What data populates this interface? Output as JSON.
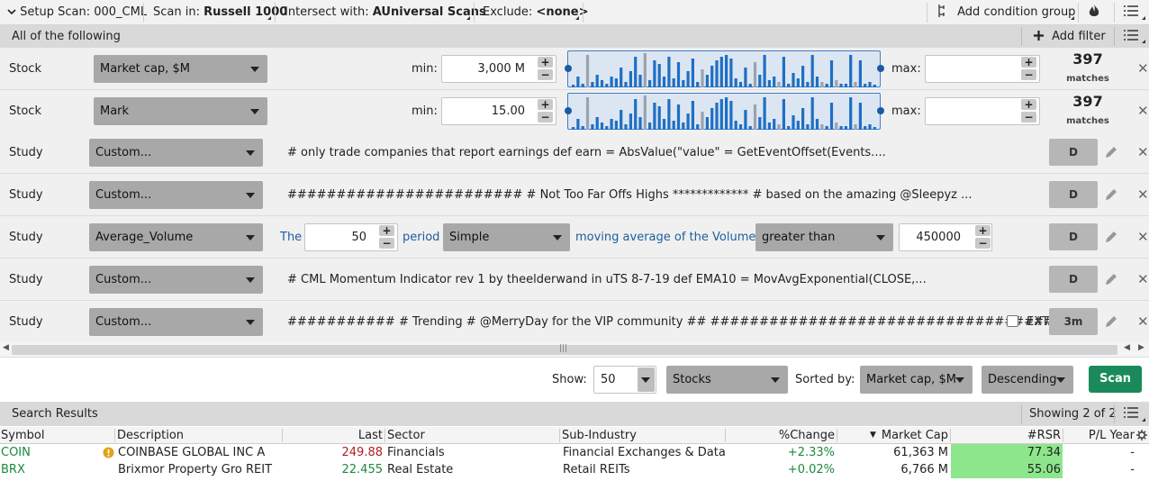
{
  "topbar": {
    "setup_scan": "Setup Scan: 000_CML",
    "scan_in_label": "Scan in:",
    "scan_in_value": "Russell 1000",
    "intersect_label": "Intersect with:",
    "intersect_value": "AUniversal Scans",
    "exclude_label": "Exclude:",
    "exclude_value": "<none>",
    "add_condition_group": "Add condition group"
  },
  "filters_header": {
    "title": "All of the following",
    "add_filter": "Add filter"
  },
  "filters": [
    {
      "type": "Stock",
      "field": "Market cap, $M",
      "min_label": "min:",
      "min": "3,000 M",
      "max_label": "max:",
      "max": "",
      "matches": "397",
      "matches_label": "matches"
    },
    {
      "type": "Stock",
      "field": "Mark",
      "min_label": "min:",
      "min": "15.00",
      "max_label": "max:",
      "max": "",
      "matches": "397",
      "matches_label": "matches"
    },
    {
      "type": "Study",
      "field": "Custom...",
      "code": "# only trade companies that report earnings  def earn = AbsValue(\"value\" = GetEventOffset(Events....",
      "agg": "D"
    },
    {
      "type": "Study",
      "field": "Custom...",
      "code": "######################## # Not Too Far Offs Highs  ************* # based on the amazing @Sleepyz ...",
      "agg": "D"
    },
    {
      "type": "Study",
      "field": "Average_Volume",
      "the": "The",
      "period_value": "50",
      "period": "period",
      "avg_type": "Simple",
      "mid_text": "moving average of the Volume is",
      "comparison": "greater than",
      "threshold": "450000",
      "agg": "D"
    },
    {
      "type": "Study",
      "field": "Custom...",
      "code": "# CML Momentum Indicator rev 1 by theelderwand in uTS 8-7-19 def EMA10 = MovAvgExponential(CLOSE,...",
      "agg": "D"
    },
    {
      "type": "Study",
      "field": "Custom...",
      "code": "########### # Trending # @MerryDay for the VIP community ## #####################################...",
      "ext": "EXT",
      "agg": "3m"
    }
  ],
  "controls": {
    "show_label": "Show:",
    "show_value": "50",
    "universe": "Stocks",
    "sorted_label": "Sorted by:",
    "sorted_value": "Market cap, $M",
    "order": "Descending",
    "scan": "Scan"
  },
  "results": {
    "title": "Search Results",
    "showing": "Showing 2 of 2",
    "columns": [
      "Symbol",
      "Description",
      "Last",
      "Sector",
      "Sub-Industry",
      "%Change",
      "Market Cap",
      "#RSR",
      "P/L Year"
    ],
    "rows": [
      {
        "symbol": "COIN",
        "description": "COINBASE GLOBAL INC A",
        "last": "249.88",
        "sector": "Financials",
        "sub_industry": "Financial Exchanges & Data",
        "change": "+2.33%",
        "market_cap": "61,363 M",
        "rsr": "77.34",
        "pl_year": "-"
      },
      {
        "symbol": "BRX",
        "description": "Brixmor Property Gro REIT",
        "last": "22.455",
        "sector": "Real Estate",
        "sub_industry": "Retail REITs",
        "change": "+0.02%",
        "market_cap": "6,766 M",
        "rsr": "55.06",
        "pl_year": "-"
      }
    ]
  },
  "colors": {
    "green": "#1a8a3a",
    "red": "#b02020",
    "scan": "#1b8a5a",
    "rsr": "#8de68b",
    "link": "#1e5d9f"
  }
}
